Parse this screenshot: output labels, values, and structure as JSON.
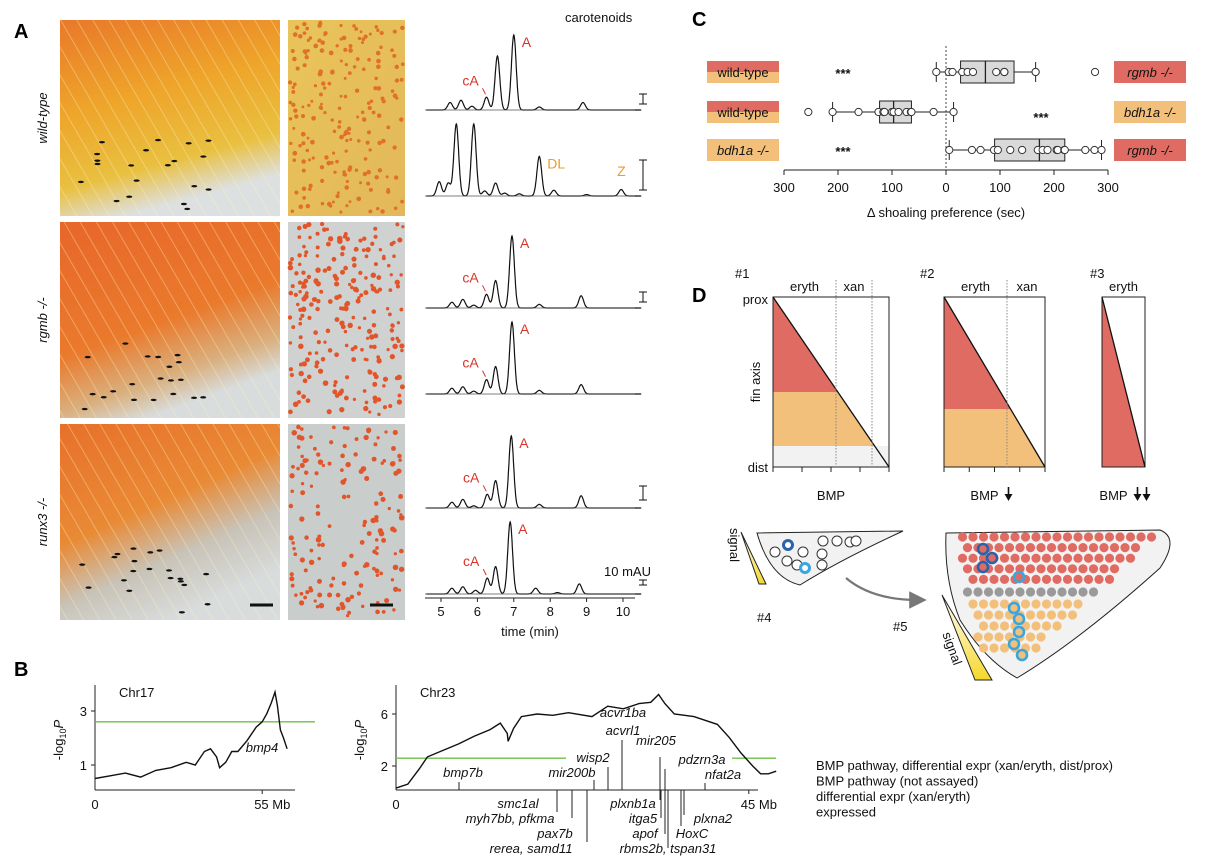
{
  "panels": {
    "a": "A",
    "b": "B",
    "c": "C",
    "d": "D"
  },
  "panel_a": {
    "row_labels": [
      "wild-type",
      "rgmb -/-",
      "runx3 -/-"
    ],
    "title": "carotenoids",
    "scale_label": "10 mAU",
    "xlabel": "time (min)",
    "peak_labels": {
      "A": "A",
      "cA": "cA",
      "DL": "DL",
      "Z": "Z"
    }
  },
  "panel_b": {
    "legend": [
      {
        "text": "BMP pathway, differential expr (xan/eryth, dist/prox)",
        "color": "#d7352a"
      },
      {
        "text": "BMP pathway (not assayed)",
        "color": "#2f7fc2"
      },
      {
        "text": "differential expr (xan/eryth)",
        "color": "#9b50b3"
      },
      {
        "text": "expressed",
        "color": "#e99b2e"
      }
    ],
    "ylabel_prefix": "-log",
    "ylabel_sub": "10",
    "ylabel_p": "P"
  },
  "panel_d": {
    "models": [
      "#1",
      "#2",
      "#3",
      "#4",
      "#5"
    ],
    "eryth": "eryth",
    "xan": "xan",
    "prox": "prox",
    "dist": "dist",
    "fin_axis": "fin axis",
    "bmp": "BMP",
    "signal": "signal"
  },
  "colors": {
    "red": "#e06b63",
    "orange": "#f2c07b",
    "grey_box": "#d9d9d9",
    "threshold": "#6cc04a",
    "eryth_cell": "#e06b63",
    "xan_cell": "#f2c07b",
    "other_cell": "#9a9a9a",
    "dark_blue": "#2a63ad",
    "light_blue": "#3aa6e0",
    "signal": "#f5dc3a"
  },
  "chart_data": [
    {
      "type": "line",
      "panel": "A",
      "title": "carotenoids",
      "xlabel": "time (min)",
      "xticks": [
        5,
        6,
        7,
        8,
        9,
        10
      ],
      "xlim": [
        4.6,
        10.5
      ],
      "traces": [
        {
          "row": "wild-type",
          "peaks": [
            [
              5.25,
              0.1
            ],
            [
              5.55,
              0.13
            ],
            [
              5.85,
              0.05
            ],
            [
              6.25,
              0.17
            ],
            [
              6.55,
              0.72
            ],
            [
              7.0,
              1.0
            ],
            [
              7.7,
              0.04
            ],
            [
              8.9,
              0.1
            ]
          ],
          "labels": [
            [
              "cA",
              6.25
            ],
            [
              "A",
              7.0
            ]
          ]
        },
        {
          "row": "wild-type",
          "peaks": [
            [
              4.95,
              0.2
            ],
            [
              5.2,
              0.18
            ],
            [
              5.42,
              1.0
            ],
            [
              5.9,
              1.0
            ],
            [
              6.2,
              0.07
            ],
            [
              6.5,
              0.18
            ],
            [
              6.75,
              0.04
            ],
            [
              7.15,
              0.03
            ],
            [
              7.7,
              0.55
            ],
            [
              8.1,
              0.08
            ],
            [
              9.0,
              0.02
            ],
            [
              9.95,
              0.09
            ]
          ],
          "labels": [
            [
              "DL",
              7.7
            ],
            [
              "Z",
              9.95
            ]
          ]
        },
        {
          "row": "rgmb -/-",
          "peaks": [
            [
              5.3,
              0.08
            ],
            [
              5.6,
              0.12
            ],
            [
              5.9,
              0.04
            ],
            [
              6.25,
              0.19
            ],
            [
              6.5,
              0.38
            ],
            [
              6.95,
              1.0
            ],
            [
              7.7,
              0.05
            ],
            [
              8.85,
              0.17
            ]
          ],
          "labels": [
            [
              "cA",
              6.25
            ],
            [
              "A",
              6.95
            ]
          ]
        },
        {
          "row": "rgmb -/-",
          "peaks": [
            [
              5.3,
              0.08
            ],
            [
              5.6,
              0.1
            ],
            [
              5.9,
              0.04
            ],
            [
              6.25,
              0.2
            ],
            [
              6.5,
              0.38
            ],
            [
              6.95,
              1.0
            ],
            [
              7.7,
              0.05
            ],
            [
              8.85,
              0.13
            ]
          ],
          "labels": [
            [
              "cA",
              6.25
            ],
            [
              "A",
              6.95
            ]
          ]
        },
        {
          "row": "runx3 -/-",
          "peaks": [
            [
              5.3,
              0.08
            ],
            [
              5.6,
              0.12
            ],
            [
              5.9,
              0.03
            ],
            [
              6.27,
              0.19
            ],
            [
              6.5,
              0.38
            ],
            [
              6.93,
              1.0
            ],
            [
              7.7,
              0.05
            ],
            [
              8.85,
              0.17
            ]
          ],
          "labels": [
            [
              "cA",
              6.27
            ],
            [
              "A",
              6.93
            ]
          ]
        },
        {
          "row": "runx3 -/-",
          "peaks": [
            [
              5.3,
              0.08
            ],
            [
              5.6,
              0.1
            ],
            [
              5.95,
              0.05
            ],
            [
              6.27,
              0.22
            ],
            [
              6.5,
              0.38
            ],
            [
              6.9,
              1.0
            ],
            [
              7.6,
              0.08
            ],
            [
              8.2,
              0.02
            ],
            [
              8.8,
              0.14
            ]
          ],
          "labels": [
            [
              "cA",
              6.27
            ],
            [
              "A",
              6.9
            ]
          ]
        }
      ]
    },
    {
      "type": "line",
      "panel": "B",
      "title": "Chr17",
      "ylabel": "-log10P",
      "yticks": [
        1,
        3
      ],
      "xtick_labels": [
        "0",
        "55 Mb"
      ],
      "threshold": 2.6,
      "x": [
        0,
        5,
        10,
        15,
        20,
        25,
        30,
        33,
        36,
        38,
        40,
        41,
        43,
        45,
        47,
        50,
        53,
        55,
        56.5,
        58,
        59.2,
        60,
        61,
        62,
        63.2
      ],
      "y": [
        0.5,
        0.6,
        0.7,
        0.55,
        0.8,
        0.9,
        1.1,
        1.0,
        1.5,
        1.6,
        1.3,
        0.9,
        1.1,
        1.5,
        1.5,
        1.9,
        2.4,
        2.6,
        2.9,
        3.3,
        3.7,
        3.2,
        2.3,
        2.0,
        1.6
      ],
      "genes": [
        {
          "name": "bmp4",
          "pos": 55,
          "cat": 0
        }
      ]
    },
    {
      "type": "line",
      "panel": "B",
      "title": "Chr23",
      "ylabel": "-log10P",
      "yticks": [
        2,
        6
      ],
      "xtick_labels": [
        "0",
        "45 Mb"
      ],
      "threshold": 2.6,
      "x": [
        0,
        1.5,
        3,
        4,
        6,
        8,
        10,
        12,
        13.3,
        14.2,
        14.3,
        15,
        16,
        18,
        20,
        22,
        25,
        27,
        29,
        31,
        32.5,
        33.5,
        34.3,
        35.5,
        38,
        41,
        42.5,
        44,
        45.5,
        46.5,
        47.5,
        48.5
      ],
      "y": [
        0.3,
        0.6,
        1.8,
        2.7,
        3.2,
        3.7,
        4.3,
        4.8,
        5.3,
        4.5,
        3.9,
        4.9,
        5.8,
        6.0,
        5.9,
        6.1,
        5.8,
        6.6,
        6.4,
        6.8,
        6.9,
        7.5,
        6.8,
        6.0,
        5.8,
        5.2,
        4.2,
        3.0,
        2.0,
        1.4,
        1.4,
        1.6
      ],
      "genes_above": [
        {
          "name": "bmp7b",
          "cat": 0
        },
        {
          "name": "mir200b",
          "cat": 1
        },
        {
          "name": "wisp2",
          "cat": 0
        },
        {
          "name": "acvr1ba",
          "cat": 0
        },
        {
          "name": "acvrl1",
          "cat": 0
        },
        {
          "name": "mir205",
          "cat": 1
        },
        {
          "name": "pdzrn3a",
          "cat": 0
        },
        {
          "name": "nfat2a",
          "cat": 0
        }
      ],
      "genes_below": [
        {
          "name": "smc1al",
          "cat": 2
        },
        {
          "name": "myh7bb, pfkma",
          "cat": 2
        },
        {
          "name": "pax7b",
          "cat": 3
        },
        {
          "name": "rerea, samd11",
          "cat": 2
        },
        {
          "name": "plxnb1a",
          "cat": 2
        },
        {
          "name": "itga5",
          "cat": 2
        },
        {
          "name": "apof",
          "cat": 2
        },
        {
          "name": "rbms2b, tspan31",
          "cat": 2
        },
        {
          "name": "HoxC",
          "cat": 3
        },
        {
          "name": "plxna2",
          "cat": 2
        }
      ]
    },
    {
      "type": "box",
      "panel": "C",
      "xlabel": "Δ shoaling preference (sec)",
      "xticks": [
        -300,
        -200,
        -100,
        0,
        100,
        200,
        300
      ],
      "xtick_labels": [
        "300",
        "200",
        "100",
        "0",
        "100",
        "200",
        "300"
      ],
      "rows": [
        {
          "left": "wild-type",
          "right": "rgmb -/-",
          "left_style": "split",
          "right_style": "red",
          "stars": "***",
          "stars_side": "left",
          "whisker": [
            -18,
            166
          ],
          "box": [
            27,
            126
          ],
          "median": 73,
          "points": [
            -18,
            5,
            12,
            30,
            40,
            50,
            93,
            108,
            108,
            108,
            166,
            166,
            276
          ]
        },
        {
          "left": "wild-type",
          "right": "bdh1a -/-",
          "left_style": "split",
          "right_style": "orange",
          "stars": "***",
          "stars_side": "right",
          "whisker": [
            -210,
            14
          ],
          "box": [
            -123,
            -64
          ],
          "median": -97,
          "points": [
            -255,
            -210,
            -162,
            -125,
            -116,
            -114,
            -100,
            -97,
            -88,
            -73,
            -65,
            -64,
            -23,
            14
          ]
        },
        {
          "left": "bdh1a -/-",
          "right": "rgmb -/-",
          "left_style": "orange",
          "right_style": "red",
          "stars": "***",
          "stars_side": "left",
          "whisker": [
            6,
            288
          ],
          "box": [
            90,
            220
          ],
          "median": 173,
          "points": [
            6,
            48,
            64,
            89,
            96,
            119,
            141,
            170,
            179,
            188,
            205,
            207,
            219,
            220,
            258,
            275,
            288
          ]
        }
      ]
    }
  ]
}
